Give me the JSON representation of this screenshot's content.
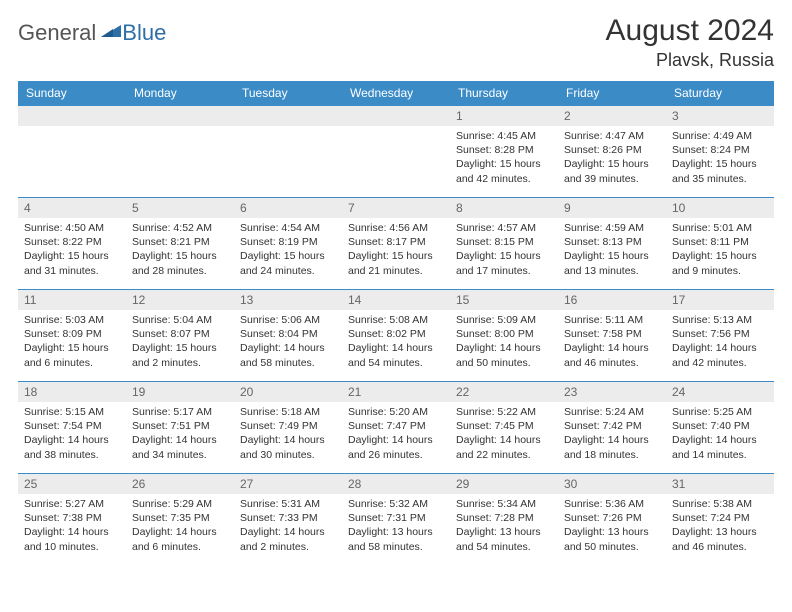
{
  "brand": {
    "general": "General",
    "blue": "Blue"
  },
  "title": "August 2024",
  "subtitle": "Plavsk, Russia",
  "colors": {
    "header_bg": "#3b8bc7",
    "header_text": "#ffffff",
    "daynum_bg": "#ececec",
    "daynum_text": "#666666",
    "cell_border": "#3b8bc7",
    "body_text": "#333333",
    "logo_gray": "#555555",
    "logo_blue": "#2f6fa7",
    "page_bg": "#ffffff"
  },
  "fontsize": {
    "title": 30,
    "subtitle": 18,
    "th": 12,
    "daynum": 12,
    "body": 10.5,
    "logo": 22
  },
  "weekdays": [
    "Sunday",
    "Monday",
    "Tuesday",
    "Wednesday",
    "Thursday",
    "Friday",
    "Saturday"
  ],
  "weeks": [
    [
      null,
      null,
      null,
      null,
      {
        "n": "1",
        "sr": "4:45 AM",
        "ss": "8:28 PM",
        "dl": "15 hours and 42 minutes."
      },
      {
        "n": "2",
        "sr": "4:47 AM",
        "ss": "8:26 PM",
        "dl": "15 hours and 39 minutes."
      },
      {
        "n": "3",
        "sr": "4:49 AM",
        "ss": "8:24 PM",
        "dl": "15 hours and 35 minutes."
      }
    ],
    [
      {
        "n": "4",
        "sr": "4:50 AM",
        "ss": "8:22 PM",
        "dl": "15 hours and 31 minutes."
      },
      {
        "n": "5",
        "sr": "4:52 AM",
        "ss": "8:21 PM",
        "dl": "15 hours and 28 minutes."
      },
      {
        "n": "6",
        "sr": "4:54 AM",
        "ss": "8:19 PM",
        "dl": "15 hours and 24 minutes."
      },
      {
        "n": "7",
        "sr": "4:56 AM",
        "ss": "8:17 PM",
        "dl": "15 hours and 21 minutes."
      },
      {
        "n": "8",
        "sr": "4:57 AM",
        "ss": "8:15 PM",
        "dl": "15 hours and 17 minutes."
      },
      {
        "n": "9",
        "sr": "4:59 AM",
        "ss": "8:13 PM",
        "dl": "15 hours and 13 minutes."
      },
      {
        "n": "10",
        "sr": "5:01 AM",
        "ss": "8:11 PM",
        "dl": "15 hours and 9 minutes."
      }
    ],
    [
      {
        "n": "11",
        "sr": "5:03 AM",
        "ss": "8:09 PM",
        "dl": "15 hours and 6 minutes."
      },
      {
        "n": "12",
        "sr": "5:04 AM",
        "ss": "8:07 PM",
        "dl": "15 hours and 2 minutes."
      },
      {
        "n": "13",
        "sr": "5:06 AM",
        "ss": "8:04 PM",
        "dl": "14 hours and 58 minutes."
      },
      {
        "n": "14",
        "sr": "5:08 AM",
        "ss": "8:02 PM",
        "dl": "14 hours and 54 minutes."
      },
      {
        "n": "15",
        "sr": "5:09 AM",
        "ss": "8:00 PM",
        "dl": "14 hours and 50 minutes."
      },
      {
        "n": "16",
        "sr": "5:11 AM",
        "ss": "7:58 PM",
        "dl": "14 hours and 46 minutes."
      },
      {
        "n": "17",
        "sr": "5:13 AM",
        "ss": "7:56 PM",
        "dl": "14 hours and 42 minutes."
      }
    ],
    [
      {
        "n": "18",
        "sr": "5:15 AM",
        "ss": "7:54 PM",
        "dl": "14 hours and 38 minutes."
      },
      {
        "n": "19",
        "sr": "5:17 AM",
        "ss": "7:51 PM",
        "dl": "14 hours and 34 minutes."
      },
      {
        "n": "20",
        "sr": "5:18 AM",
        "ss": "7:49 PM",
        "dl": "14 hours and 30 minutes."
      },
      {
        "n": "21",
        "sr": "5:20 AM",
        "ss": "7:47 PM",
        "dl": "14 hours and 26 minutes."
      },
      {
        "n": "22",
        "sr": "5:22 AM",
        "ss": "7:45 PM",
        "dl": "14 hours and 22 minutes."
      },
      {
        "n": "23",
        "sr": "5:24 AM",
        "ss": "7:42 PM",
        "dl": "14 hours and 18 minutes."
      },
      {
        "n": "24",
        "sr": "5:25 AM",
        "ss": "7:40 PM",
        "dl": "14 hours and 14 minutes."
      }
    ],
    [
      {
        "n": "25",
        "sr": "5:27 AM",
        "ss": "7:38 PM",
        "dl": "14 hours and 10 minutes."
      },
      {
        "n": "26",
        "sr": "5:29 AM",
        "ss": "7:35 PM",
        "dl": "14 hours and 6 minutes."
      },
      {
        "n": "27",
        "sr": "5:31 AM",
        "ss": "7:33 PM",
        "dl": "14 hours and 2 minutes."
      },
      {
        "n": "28",
        "sr": "5:32 AM",
        "ss": "7:31 PM",
        "dl": "13 hours and 58 minutes."
      },
      {
        "n": "29",
        "sr": "5:34 AM",
        "ss": "7:28 PM",
        "dl": "13 hours and 54 minutes."
      },
      {
        "n": "30",
        "sr": "5:36 AM",
        "ss": "7:26 PM",
        "dl": "13 hours and 50 minutes."
      },
      {
        "n": "31",
        "sr": "5:38 AM",
        "ss": "7:24 PM",
        "dl": "13 hours and 46 minutes."
      }
    ]
  ],
  "labels": {
    "sunrise": "Sunrise:",
    "sunset": "Sunset:",
    "daylight": "Daylight:"
  }
}
